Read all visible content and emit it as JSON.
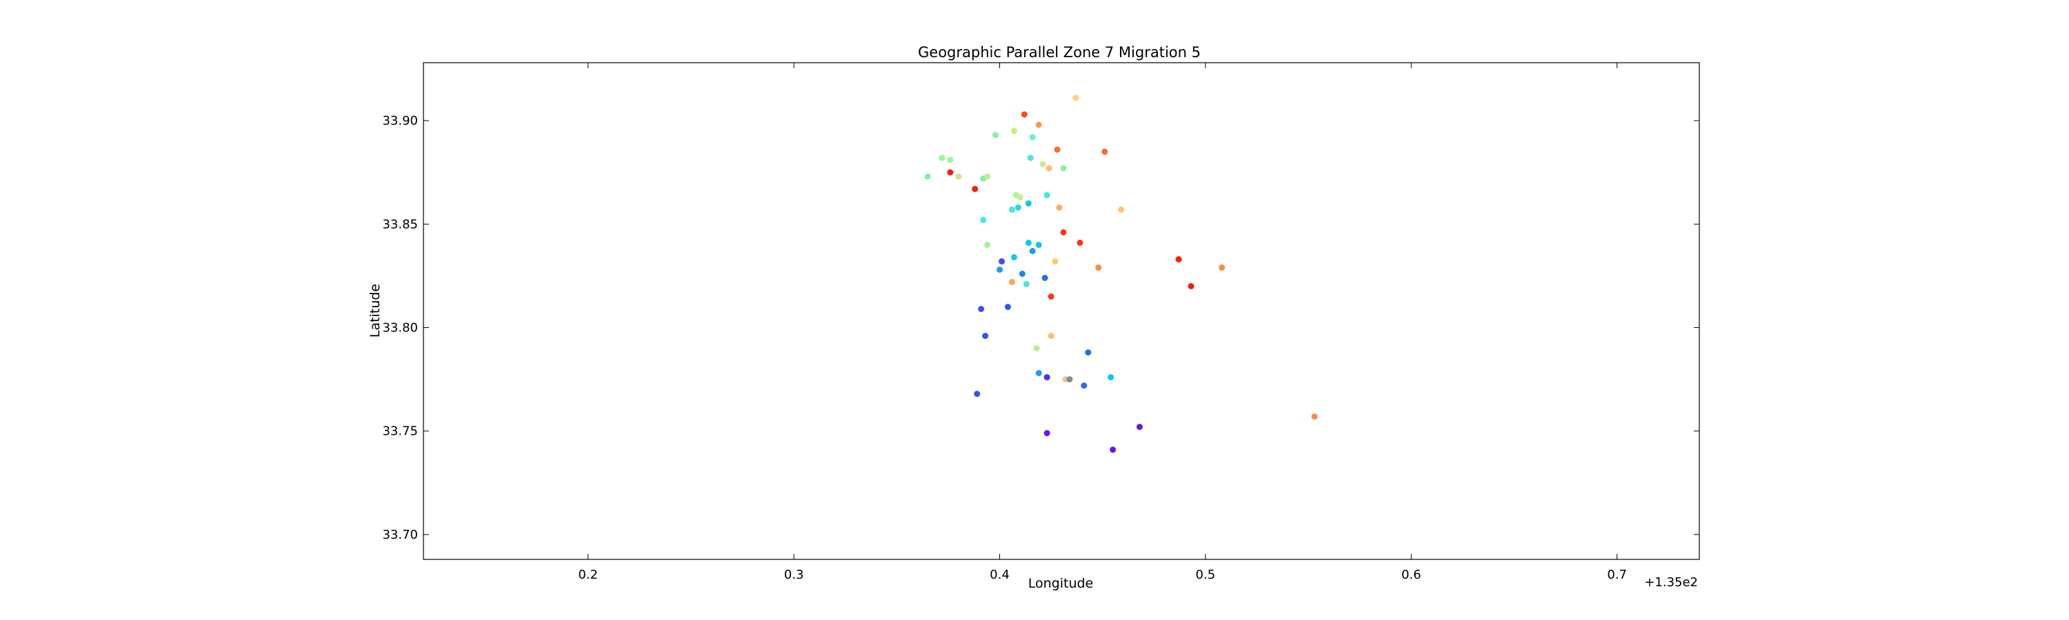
{
  "chart_data": {
    "type": "scatter",
    "title": "Geographic Parallel Zone 7 Migration 5",
    "xlabel": "Longitude",
    "ylabel": "Latitude",
    "x_offset_label": "+1.35e2",
    "xlim": [
      135.12,
      135.74
    ],
    "ylim": [
      33.688,
      33.928
    ],
    "x_ticks": [
      0.2,
      0.3,
      0.4,
      0.5,
      0.6,
      0.7
    ],
    "x_tick_labels": [
      "0.2",
      "0.3",
      "0.4",
      "0.5",
      "0.6",
      "0.7"
    ],
    "y_ticks": [
      33.7,
      33.75,
      33.8,
      33.85,
      33.9
    ],
    "y_tick_labels": [
      "33.70",
      "33.75",
      "33.80",
      "33.85",
      "33.90"
    ],
    "grid": false,
    "color_scale": "rainbow",
    "points": [
      {
        "x": 135.437,
        "y": 33.911,
        "color": "#ffd27a"
      },
      {
        "x": 135.412,
        "y": 33.903,
        "color": "#ff4a1f"
      },
      {
        "x": 135.419,
        "y": 33.898,
        "color": "#ff9a4d"
      },
      {
        "x": 135.407,
        "y": 33.895,
        "color": "#c8ec8a"
      },
      {
        "x": 135.398,
        "y": 33.893,
        "color": "#8cf0a0"
      },
      {
        "x": 135.416,
        "y": 33.892,
        "color": "#6ef0c4"
      },
      {
        "x": 135.428,
        "y": 33.886,
        "color": "#ff6a30"
      },
      {
        "x": 135.451,
        "y": 33.885,
        "color": "#ff6a30"
      },
      {
        "x": 135.372,
        "y": 33.882,
        "color": "#9ef49a"
      },
      {
        "x": 135.376,
        "y": 33.881,
        "color": "#9ef49a"
      },
      {
        "x": 135.415,
        "y": 33.882,
        "color": "#46e8d8"
      },
      {
        "x": 135.421,
        "y": 33.879,
        "color": "#d8e68a"
      },
      {
        "x": 135.424,
        "y": 33.877,
        "color": "#ffbe6e"
      },
      {
        "x": 135.431,
        "y": 33.877,
        "color": "#8cf0a0"
      },
      {
        "x": 135.376,
        "y": 33.875,
        "color": "#ff1a10"
      },
      {
        "x": 135.38,
        "y": 33.873,
        "color": "#e6d890"
      },
      {
        "x": 135.365,
        "y": 33.873,
        "color": "#8cf0a0"
      },
      {
        "x": 135.392,
        "y": 33.872,
        "color": "#7cf0ac"
      },
      {
        "x": 135.394,
        "y": 33.873,
        "color": "#c0ec94"
      },
      {
        "x": 135.388,
        "y": 33.867,
        "color": "#ff1a10"
      },
      {
        "x": 135.408,
        "y": 33.864,
        "color": "#b4ee96"
      },
      {
        "x": 135.423,
        "y": 33.864,
        "color": "#46e8d8"
      },
      {
        "x": 135.41,
        "y": 33.863,
        "color": "#c8ec8a"
      },
      {
        "x": 135.406,
        "y": 33.857,
        "color": "#46e8d8"
      },
      {
        "x": 135.409,
        "y": 33.858,
        "color": "#28d8e6"
      },
      {
        "x": 135.414,
        "y": 33.86,
        "color": "#14c8e8"
      },
      {
        "x": 135.429,
        "y": 33.858,
        "color": "#ffaa5a"
      },
      {
        "x": 135.459,
        "y": 33.857,
        "color": "#ffc46a"
      },
      {
        "x": 135.392,
        "y": 33.852,
        "color": "#46e8d8"
      },
      {
        "x": 135.431,
        "y": 33.846,
        "color": "#ff3418"
      },
      {
        "x": 135.439,
        "y": 33.841,
        "color": "#ff3418"
      },
      {
        "x": 135.394,
        "y": 33.84,
        "color": "#a6f096"
      },
      {
        "x": 135.414,
        "y": 33.841,
        "color": "#14c8e8"
      },
      {
        "x": 135.419,
        "y": 33.84,
        "color": "#14c8e8"
      },
      {
        "x": 135.416,
        "y": 33.837,
        "color": "#1aa0ee"
      },
      {
        "x": 135.407,
        "y": 33.834,
        "color": "#14c8e8"
      },
      {
        "x": 135.401,
        "y": 33.832,
        "color": "#3a50f0"
      },
      {
        "x": 135.427,
        "y": 33.832,
        "color": "#ffc870"
      },
      {
        "x": 135.487,
        "y": 33.833,
        "color": "#ff1a10"
      },
      {
        "x": 135.448,
        "y": 33.829,
        "color": "#ff8a46"
      },
      {
        "x": 135.508,
        "y": 33.829,
        "color": "#ff8a46"
      },
      {
        "x": 135.4,
        "y": 33.828,
        "color": "#1aa0ee"
      },
      {
        "x": 135.411,
        "y": 33.826,
        "color": "#1a88ee"
      },
      {
        "x": 135.422,
        "y": 33.824,
        "color": "#2a6cf0"
      },
      {
        "x": 135.406,
        "y": 33.822,
        "color": "#ffa456"
      },
      {
        "x": 135.413,
        "y": 33.821,
        "color": "#46e8d8"
      },
      {
        "x": 135.493,
        "y": 33.82,
        "color": "#ff1a10"
      },
      {
        "x": 135.425,
        "y": 33.815,
        "color": "#ff3418"
      },
      {
        "x": 135.404,
        "y": 33.81,
        "color": "#3a50f0"
      },
      {
        "x": 135.391,
        "y": 33.809,
        "color": "#3a50f0"
      },
      {
        "x": 135.425,
        "y": 33.796,
        "color": "#ffbe6e"
      },
      {
        "x": 135.393,
        "y": 33.796,
        "color": "#3a50f0"
      },
      {
        "x": 135.418,
        "y": 33.79,
        "color": "#b4ee96"
      },
      {
        "x": 135.443,
        "y": 33.788,
        "color": "#2a6cf0"
      },
      {
        "x": 135.419,
        "y": 33.778,
        "color": "#1aa0ee"
      },
      {
        "x": 135.423,
        "y": 33.776,
        "color": "#5a28f0"
      },
      {
        "x": 135.454,
        "y": 33.776,
        "color": "#14c8e8"
      },
      {
        "x": 135.432,
        "y": 33.775,
        "color": "#f0c0a0"
      },
      {
        "x": 135.434,
        "y": 33.775,
        "color": "#8a8a8a"
      },
      {
        "x": 135.441,
        "y": 33.772,
        "color": "#2a6cf0"
      },
      {
        "x": 135.389,
        "y": 33.768,
        "color": "#3a50f0"
      },
      {
        "x": 135.553,
        "y": 33.757,
        "color": "#ff8a46"
      },
      {
        "x": 135.468,
        "y": 33.752,
        "color": "#6a14ee"
      },
      {
        "x": 135.423,
        "y": 33.749,
        "color": "#6a14ee"
      },
      {
        "x": 135.455,
        "y": 33.741,
        "color": "#6a14ee"
      }
    ]
  }
}
